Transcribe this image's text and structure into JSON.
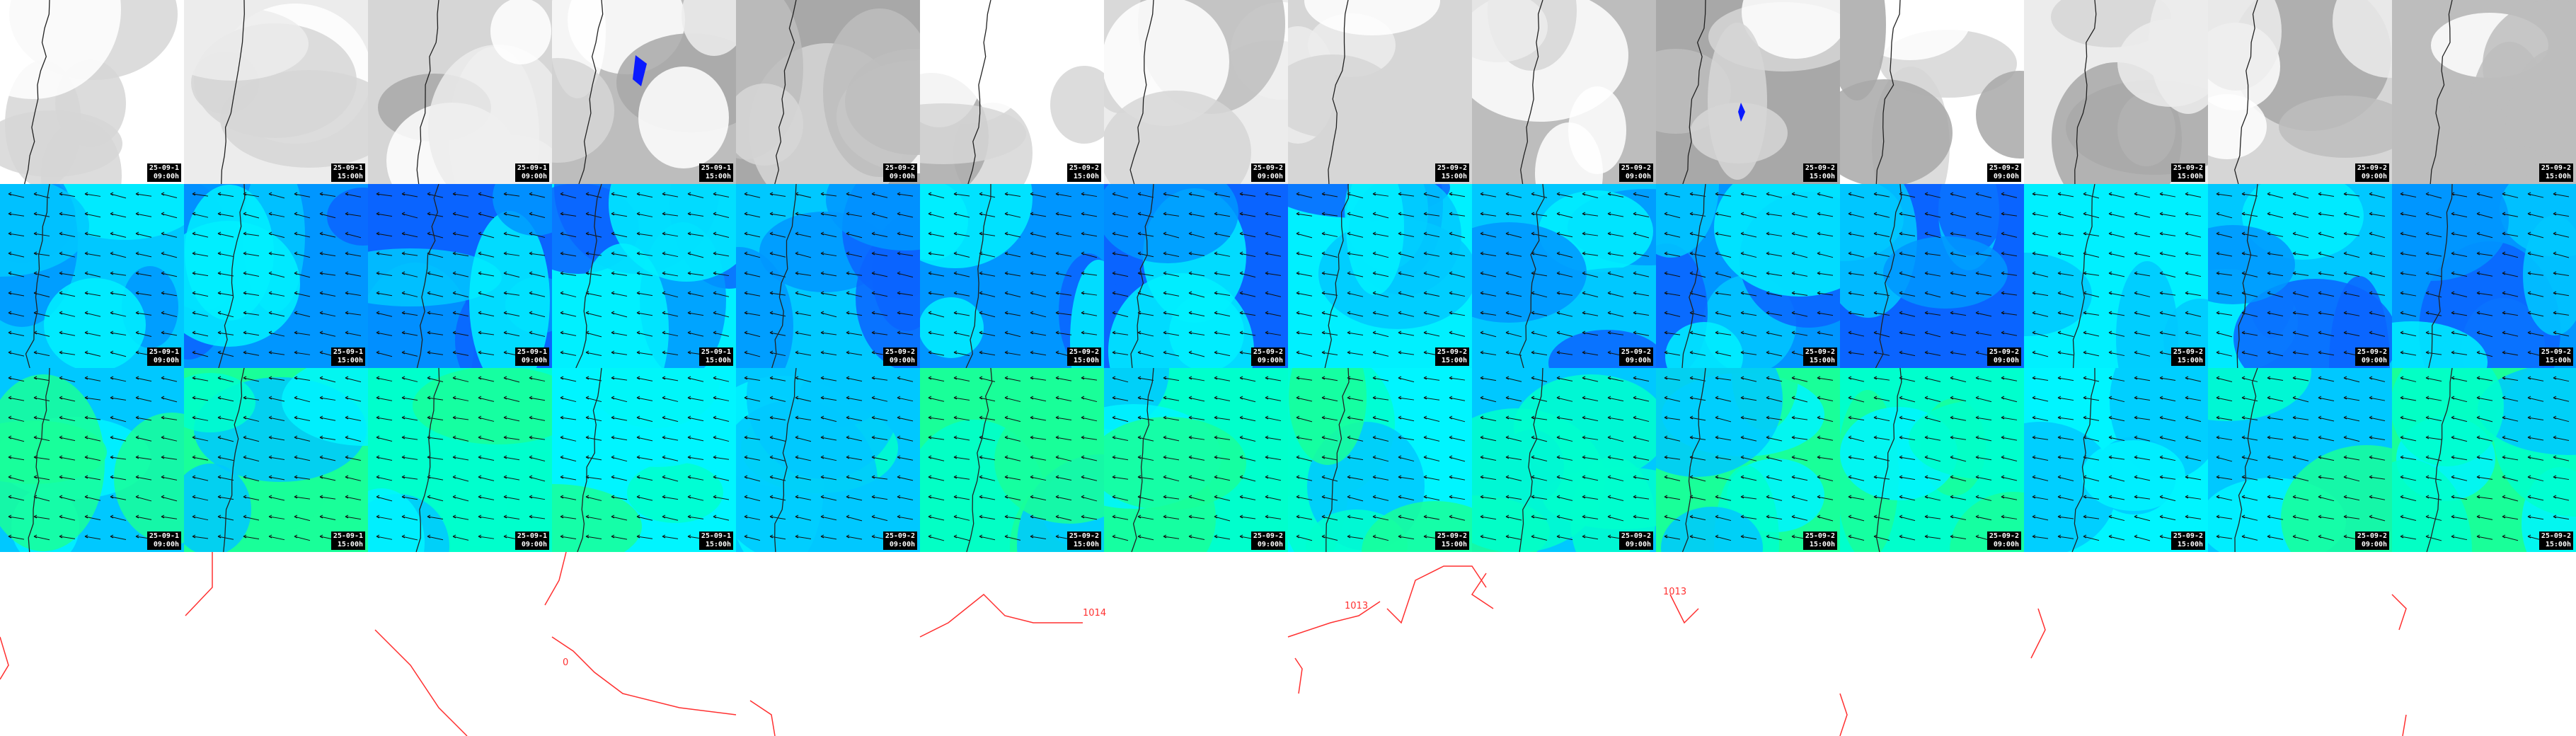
{
  "map": {
    "columns": [
      {
        "date": "25-09-1",
        "time": "09:00h"
      },
      {
        "date": "25-09-1",
        "time": "15:00h"
      },
      {
        "date": "25-09-1",
        "time": "09:00h"
      },
      {
        "date": "25-09-1",
        "time": "15:00h"
      },
      {
        "date": "25-09-2",
        "time": "09:00h"
      },
      {
        "date": "25-09-2",
        "time": "15:00h"
      },
      {
        "date": "25-09-2",
        "time": "09:00h"
      },
      {
        "date": "25-09-2",
        "time": "15:00h"
      },
      {
        "date": "25-09-2",
        "time": "09:00h"
      },
      {
        "date": "25-09-2",
        "time": "15:00h"
      },
      {
        "date": "25-09-2",
        "time": "09:00h"
      },
      {
        "date": "25-09-2",
        "time": "15:00h"
      },
      {
        "date": "25-09-2",
        "time": "09:00h"
      },
      {
        "date": "25-09-2",
        "time": "15:00h"
      }
    ],
    "rows": [
      {
        "id": "cloud",
        "palette": [
          "#ffffff",
          "#ececec",
          "#d6d6d6",
          "#bdbdbd",
          "#a8a8a8"
        ],
        "accent": "#0a1aff"
      },
      {
        "id": "wind-upper",
        "palette": [
          "#00f0ff",
          "#00c8ff",
          "#0096ff",
          "#0a64ff"
        ]
      },
      {
        "id": "wind-lower",
        "palette": [
          "#00ffcc",
          "#00f5ff",
          "#00c8ff",
          "#19ff99"
        ]
      }
    ],
    "isobar_labels": [
      "1014",
      "1013",
      "1013",
      "0"
    ],
    "isobar_color": "#ff3030",
    "coastline_color": "#222222"
  }
}
